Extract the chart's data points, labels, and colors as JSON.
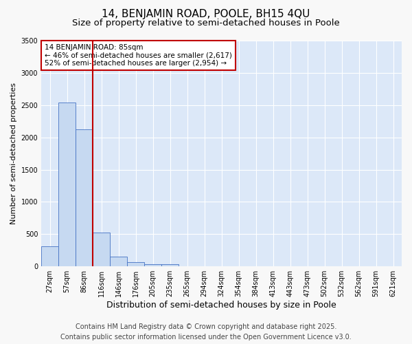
{
  "title": "14, BENJAMIN ROAD, POOLE, BH15 4QU",
  "subtitle": "Size of property relative to semi-detached houses in Poole",
  "xlabel": "Distribution of semi-detached houses by size in Poole",
  "ylabel": "Number of semi-detached properties",
  "categories": [
    "27sqm",
    "57sqm",
    "86sqm",
    "116sqm",
    "146sqm",
    "176sqm",
    "205sqm",
    "235sqm",
    "265sqm",
    "294sqm",
    "324sqm",
    "354sqm",
    "384sqm",
    "413sqm",
    "443sqm",
    "473sqm",
    "502sqm",
    "532sqm",
    "562sqm",
    "591sqm",
    "621sqm"
  ],
  "values": [
    310,
    2540,
    2120,
    525,
    155,
    70,
    35,
    35,
    0,
    0,
    0,
    0,
    0,
    0,
    0,
    0,
    0,
    0,
    0,
    0,
    0
  ],
  "bar_color": "#c6d9f1",
  "bar_edge_color": "#4472c4",
  "background_color": "#f8f8f8",
  "plot_bg_color": "#dce8f8",
  "grid_color": "#ffffff",
  "vline_x": 2.5,
  "vline_color": "#c00000",
  "annotation_text": "14 BENJAMIN ROAD: 85sqm\n← 46% of semi-detached houses are smaller (2,617)\n52% of semi-detached houses are larger (2,954) →",
  "annotation_box_color": "#c00000",
  "ylim": [
    0,
    3500
  ],
  "yticks": [
    0,
    500,
    1000,
    1500,
    2000,
    2500,
    3000,
    3500
  ],
  "footer_line1": "Contains HM Land Registry data © Crown copyright and database right 2025.",
  "footer_line2": "Contains public sector information licensed under the Open Government Licence v3.0.",
  "title_fontsize": 11,
  "subtitle_fontsize": 9.5,
  "annotation_fontsize": 7.5,
  "footer_fontsize": 7,
  "tick_fontsize": 7,
  "ylabel_fontsize": 8,
  "xlabel_fontsize": 9
}
